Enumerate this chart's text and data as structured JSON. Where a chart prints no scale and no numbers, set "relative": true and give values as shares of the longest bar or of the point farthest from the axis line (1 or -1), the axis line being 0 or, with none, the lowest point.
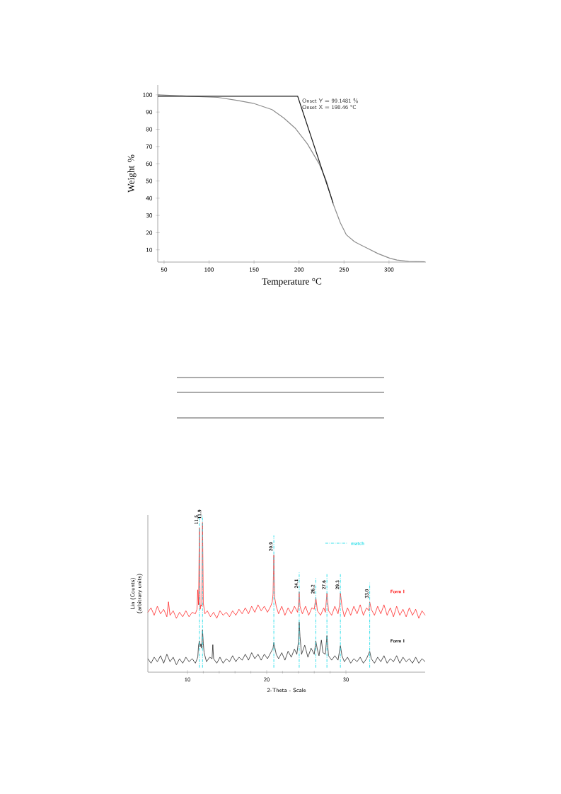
{
  "chart_data": [
    {
      "type": "line",
      "xlabel": "Temperature °C",
      "ylabel": "Weight %",
      "xlim": [
        43,
        341
      ],
      "ylim": [
        2.9,
        105.7
      ],
      "xticks": [
        50,
        100,
        150,
        200,
        250,
        300
      ],
      "yticks": [
        10,
        20,
        30,
        40,
        50,
        60,
        70,
        80,
        90,
        100
      ],
      "series": [
        {
          "color": "#8c8c8c",
          "x": [
            43,
            78.3,
            109.7,
            130.7,
            149,
            170,
            183,
            196.2,
            209.3,
            222.4,
            230.2,
            238,
            246,
            252.5,
            261.7,
            274.8,
            287.9,
            301,
            308.8,
            321.9,
            340
          ],
          "values": [
            100,
            99.2,
            98.5,
            96.8,
            95.1,
            91.4,
            86.6,
            80.4,
            71.5,
            59.9,
            50.3,
            36.6,
            25.6,
            18.8,
            14.7,
            11.2,
            7.8,
            5.1,
            4.1,
            3.3,
            3.1
          ]
        },
        {
          "type": "line",
          "color": "#1a1a1a",
          "x": [
            43,
            198.46,
            238
          ],
          "values": [
            99.2,
            99.2,
            37
          ]
        }
      ],
      "annotations": [
        {
          "text": "Onset Y = 99.1481 %",
          "x": 198.46,
          "y": 99.1481
        },
        {
          "text": "Onset X = 198.46 °C",
          "x": 198.46,
          "y": 99.1481
        }
      ]
    },
    {
      "type": "line",
      "relative": true,
      "xlabel": "2-Theta - Scale",
      "ylabel": "Lin (Counts) (arbitrary units)",
      "xlim": [
        5,
        40
      ],
      "xticks": [
        10,
        20,
        30
      ],
      "series": [
        {
          "name": "Form I",
          "color": "#ff0000",
          "x": [
            5.0,
            5.4,
            5.8,
            6.2,
            6.6,
            7.0,
            7.4,
            7.6,
            7.8,
            8.2,
            8.6,
            9.0,
            9.4,
            9.8,
            10.2,
            10.6,
            11.0,
            11.2,
            11.3,
            11.4,
            11.5,
            11.6,
            11.7,
            11.8,
            11.9,
            12.0,
            12.2,
            12.5,
            12.9,
            13.3,
            13.7,
            14.1,
            14.5,
            14.9,
            15.3,
            15.7,
            16.1,
            16.5,
            16.9,
            17.3,
            17.7,
            18.1,
            18.5,
            18.9,
            19.3,
            19.7,
            20.1,
            20.5,
            20.7,
            20.8,
            20.9,
            21.0,
            21.2,
            21.5,
            21.9,
            22.3,
            22.7,
            23.1,
            23.5,
            23.9,
            24.0,
            24.1,
            24.2,
            24.5,
            24.9,
            25.3,
            25.7,
            26.0,
            26.2,
            26.4,
            26.8,
            27.2,
            27.4,
            27.6,
            27.8,
            28.2,
            28.6,
            29.0,
            29.2,
            29.3,
            29.5,
            29.8,
            30.2,
            30.6,
            31.0,
            31.4,
            31.8,
            32.2,
            32.6,
            32.9,
            33.0,
            33.2,
            33.6,
            34.0,
            34.4,
            34.8,
            35.2,
            35.6,
            36.0,
            36.4,
            36.8,
            37.2,
            37.6,
            38.0,
            38.4,
            38.8,
            39.2,
            39.6,
            40.0
          ],
          "values": [
            0.4,
            0.43,
            0.38,
            0.44,
            0.39,
            0.42,
            0.37,
            0.47,
            0.38,
            0.41,
            0.36,
            0.4,
            0.37,
            0.41,
            0.37,
            0.4,
            0.39,
            0.42,
            0.55,
            0.45,
            0.963,
            0.42,
            0.45,
            0.44,
            1.0,
            0.46,
            0.39,
            0.41,
            0.37,
            0.4,
            0.36,
            0.41,
            0.38,
            0.4,
            0.37,
            0.41,
            0.38,
            0.42,
            0.39,
            0.43,
            0.39,
            0.44,
            0.4,
            0.45,
            0.41,
            0.44,
            0.4,
            0.44,
            0.47,
            0.52,
            0.783,
            0.5,
            0.44,
            0.39,
            0.44,
            0.38,
            0.43,
            0.39,
            0.44,
            0.4,
            0.45,
            0.536,
            0.44,
            0.39,
            0.44,
            0.38,
            0.43,
            0.42,
            0.499,
            0.41,
            0.38,
            0.43,
            0.4,
            0.528,
            0.41,
            0.38,
            0.44,
            0.39,
            0.45,
            0.528,
            0.44,
            0.37,
            0.43,
            0.38,
            0.44,
            0.39,
            0.45,
            0.38,
            0.43,
            0.41,
            0.469,
            0.42,
            0.38,
            0.44,
            0.39,
            0.45,
            0.38,
            0.43,
            0.37,
            0.44,
            0.38,
            0.42,
            0.37,
            0.43,
            0.38,
            0.42,
            0.36,
            0.41,
            0.38
          ]
        },
        {
          "name": "Form I",
          "color": "#000000",
          "x": [
            5.0,
            5.4,
            5.8,
            6.2,
            6.6,
            7.0,
            7.4,
            7.8,
            8.2,
            8.6,
            9.0,
            9.4,
            9.8,
            10.2,
            10.6,
            11.0,
            11.3,
            11.4,
            11.5,
            11.6,
            11.7,
            11.8,
            11.9,
            12.0,
            12.1,
            12.4,
            12.8,
            13.1,
            13.2,
            13.3,
            13.7,
            14.1,
            14.5,
            14.9,
            15.3,
            15.7,
            16.1,
            16.5,
            16.9,
            17.3,
            17.7,
            18.1,
            18.5,
            18.9,
            19.3,
            19.7,
            20.1,
            20.5,
            20.8,
            20.9,
            21.0,
            21.2,
            21.5,
            21.9,
            22.3,
            22.7,
            23.1,
            23.5,
            23.8,
            24.0,
            24.1,
            24.2,
            24.4,
            24.8,
            25.2,
            25.6,
            26.0,
            26.2,
            26.4,
            26.6,
            26.9,
            27.1,
            27.4,
            27.6,
            27.8,
            28.2,
            28.6,
            29.0,
            29.3,
            29.5,
            29.8,
            30.2,
            30.6,
            31.0,
            31.4,
            31.8,
            32.2,
            32.6,
            33.0,
            33.2,
            33.6,
            34.0,
            34.4,
            34.8,
            35.2,
            35.6,
            36.0,
            36.4,
            36.8,
            37.2,
            37.6,
            38.0,
            38.4,
            38.8,
            39.2,
            39.6,
            40.0
          ],
          "values": [
            0.09,
            0.06,
            0.1,
            0.07,
            0.11,
            0.06,
            0.12,
            0.07,
            0.1,
            0.05,
            0.09,
            0.06,
            0.1,
            0.07,
            0.09,
            0.06,
            0.1,
            0.18,
            0.207,
            0.17,
            0.19,
            0.16,
            0.281,
            0.19,
            0.13,
            0.07,
            0.1,
            0.09,
            0.184,
            0.09,
            0.06,
            0.1,
            0.06,
            0.09,
            0.07,
            0.11,
            0.07,
            0.1,
            0.08,
            0.12,
            0.08,
            0.13,
            0.09,
            0.12,
            0.08,
            0.12,
            0.09,
            0.13,
            0.16,
            0.199,
            0.17,
            0.12,
            0.09,
            0.13,
            0.08,
            0.14,
            0.1,
            0.154,
            0.12,
            0.2,
            0.334,
            0.24,
            0.12,
            0.18,
            0.1,
            0.16,
            0.12,
            0.207,
            0.15,
            0.11,
            0.214,
            0.13,
            0.12,
            0.244,
            0.11,
            0.08,
            0.11,
            0.08,
            0.177,
            0.11,
            0.07,
            0.1,
            0.06,
            0.09,
            0.07,
            0.1,
            0.06,
            0.09,
            0.139,
            0.09,
            0.06,
            0.1,
            0.07,
            0.11,
            0.06,
            0.09,
            0.07,
            0.11,
            0.06,
            0.1,
            0.07,
            0.09,
            0.06,
            0.1,
            0.06,
            0.09,
            0.07
          ]
        }
      ],
      "ref_lines": [
        {
          "axis": "x",
          "value": 11.5,
          "label": "11.5",
          "color": "#22dde8",
          "line_style": "dashed"
        },
        {
          "axis": "x",
          "value": 11.9,
          "label": "11.9",
          "color": "#22dde8",
          "line_style": "dashed"
        },
        {
          "axis": "x",
          "value": 20.9,
          "label": "20.9",
          "color": "#22dde8",
          "line_style": "dashed"
        },
        {
          "axis": "x",
          "value": 24.1,
          "label": "24.1",
          "color": "#22dde8",
          "line_style": "dashed"
        },
        {
          "axis": "x",
          "value": 26.2,
          "label": "26.2",
          "color": "#22dde8",
          "line_style": "dashed"
        },
        {
          "axis": "x",
          "value": 27.6,
          "label": "27.6",
          "color": "#22dde8",
          "line_style": "dashed"
        },
        {
          "axis": "x",
          "value": 29.3,
          "label": "29.3",
          "color": "#22dde8",
          "line_style": "dashed"
        },
        {
          "axis": "x",
          "value": 33.0,
          "label": "33.0",
          "color": "#22dde8",
          "line_style": "dashed"
        }
      ],
      "annotations": [
        "match"
      ]
    }
  ]
}
